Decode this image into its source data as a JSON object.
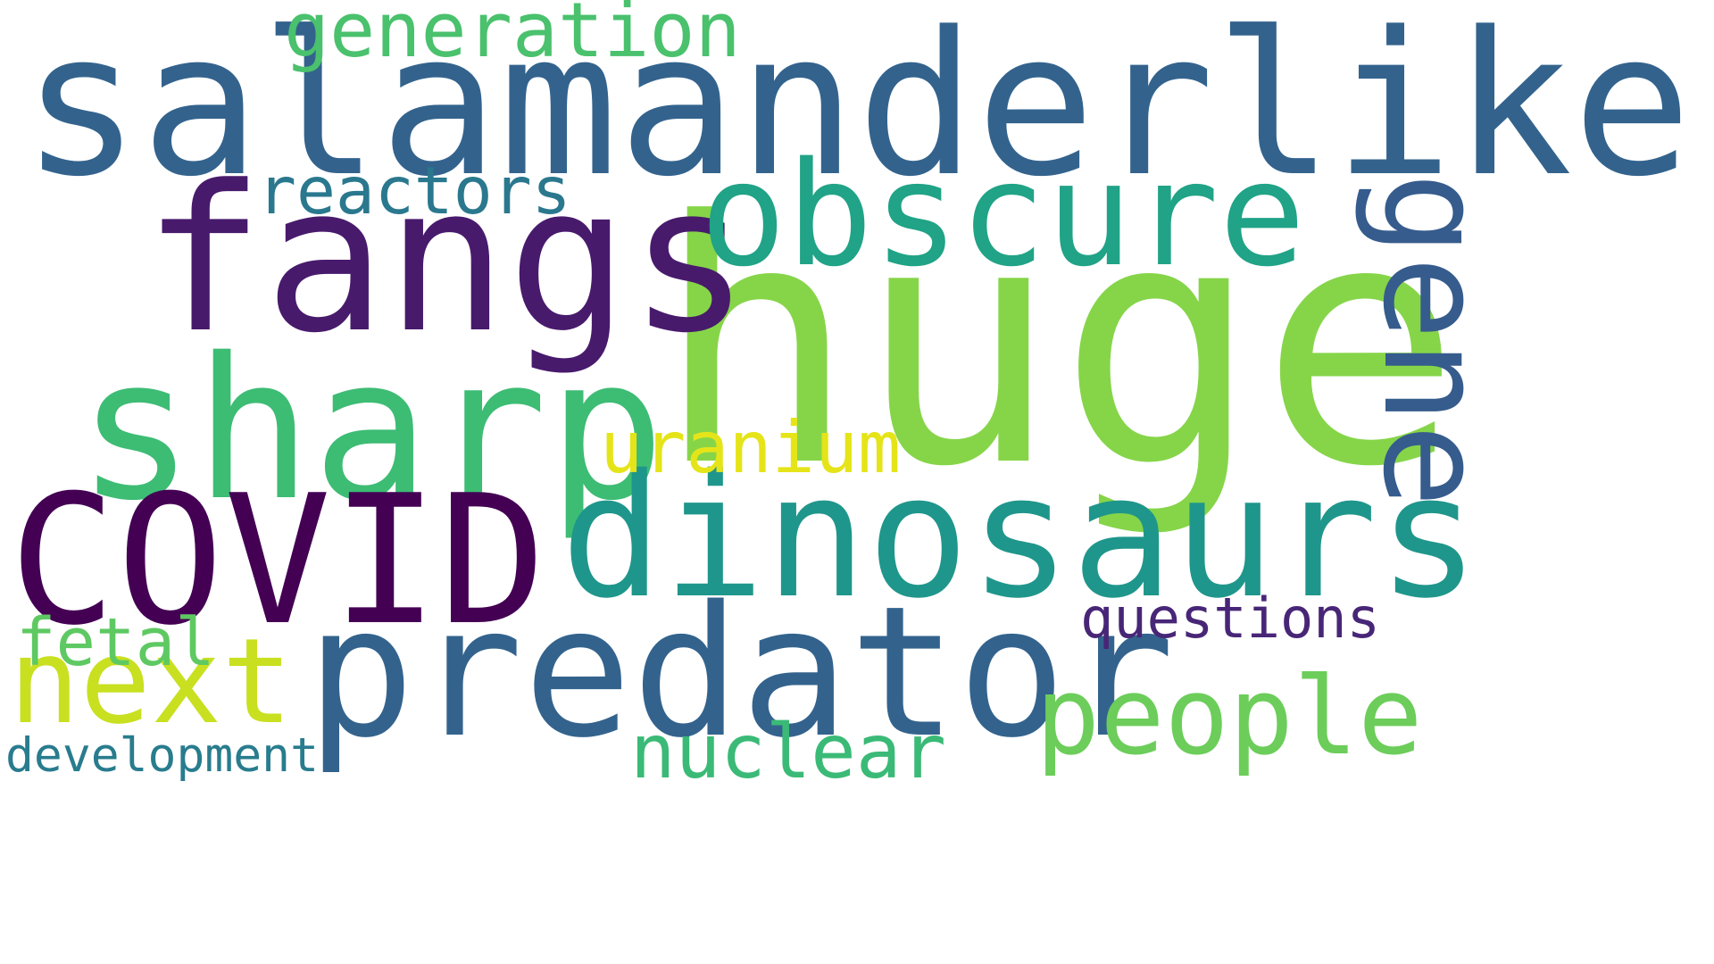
{
  "words": [
    {
      "id": "salamanderlike",
      "text": "salamanderlike",
      "color": "#33638d"
    },
    {
      "id": "huge",
      "text": "huge",
      "color": "#86d549"
    },
    {
      "id": "fangs",
      "text": "fangs",
      "color": "#481a6c"
    },
    {
      "id": "obscure",
      "text": "obscure",
      "color": "#20a386"
    },
    {
      "id": "sharp",
      "text": "sharp",
      "color": "#3dbc74"
    },
    {
      "id": "covid",
      "text": "COVID",
      "color": "#440154"
    },
    {
      "id": "dinosaurs",
      "text": "dinosaurs",
      "color": "#1f968b"
    },
    {
      "id": "predator",
      "text": "predator",
      "color": "#33638d"
    },
    {
      "id": "gene",
      "text": "gene",
      "color": "#365c8d"
    },
    {
      "id": "generation",
      "text": "generation",
      "color": "#4ac16d"
    },
    {
      "id": "reactors",
      "text": "reactors",
      "color": "#2a788e"
    },
    {
      "id": "uranium",
      "text": "uranium",
      "color": "#e5e419"
    },
    {
      "id": "next",
      "text": "next",
      "color": "#c8e020"
    },
    {
      "id": "fetal",
      "text": "fetal",
      "color": "#5ec962"
    },
    {
      "id": "people",
      "text": "people",
      "color": "#6ccd5a"
    },
    {
      "id": "questions",
      "text": "questions",
      "color": "#482677"
    },
    {
      "id": "nuclear",
      "text": "nuclear",
      "color": "#3aba76"
    },
    {
      "id": "development",
      "text": "development",
      "color": "#287c8e"
    }
  ]
}
